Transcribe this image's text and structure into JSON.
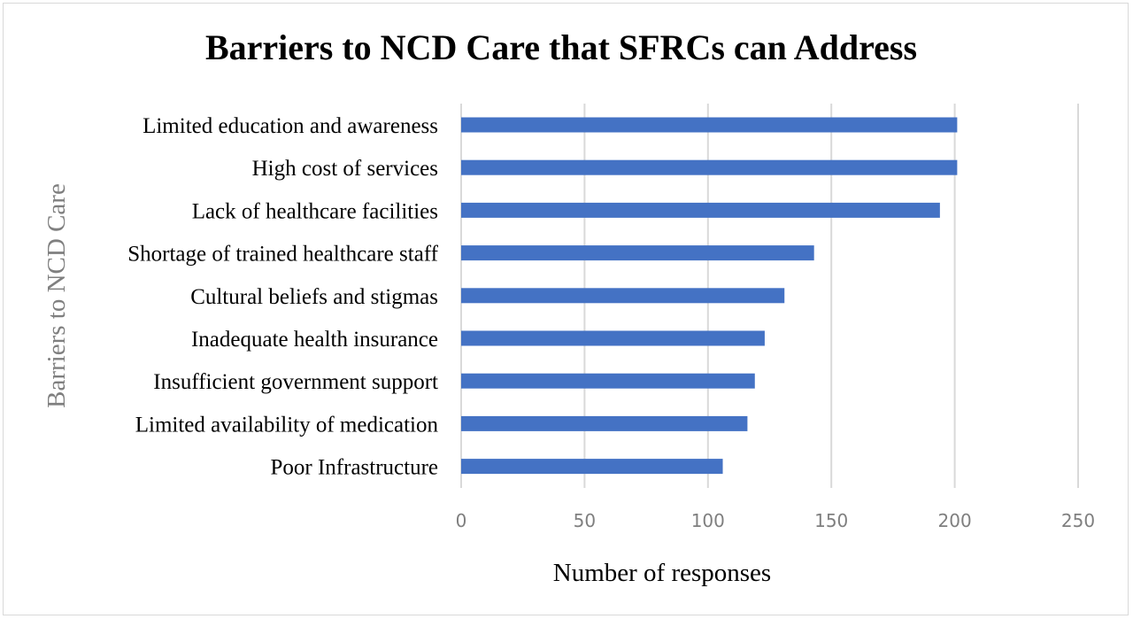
{
  "chart_data": {
    "type": "bar",
    "orientation": "horizontal",
    "title": "Barriers to NCD Care that SFRCs can Address",
    "xlabel": "Number of responses",
    "ylabel": "Barriers to NCD Care",
    "categories": [
      "Limited education and awareness",
      "High cost of services",
      "Lack of healthcare facilities",
      "Shortage of trained healthcare staff",
      "Cultural beliefs and stigmas",
      "Inadequate health insurance",
      "Insufficient government support",
      "Limited availability of medication",
      "Poor Infrastructure"
    ],
    "values": [
      201,
      201,
      194,
      143,
      131,
      123,
      119,
      116,
      106
    ],
    "xlim": [
      0,
      250
    ],
    "xticks": [
      "0",
      "50",
      "100",
      "150",
      "200",
      "250"
    ],
    "grid": "vertical",
    "legend": "none",
    "bar_color": "#4472c4"
  }
}
